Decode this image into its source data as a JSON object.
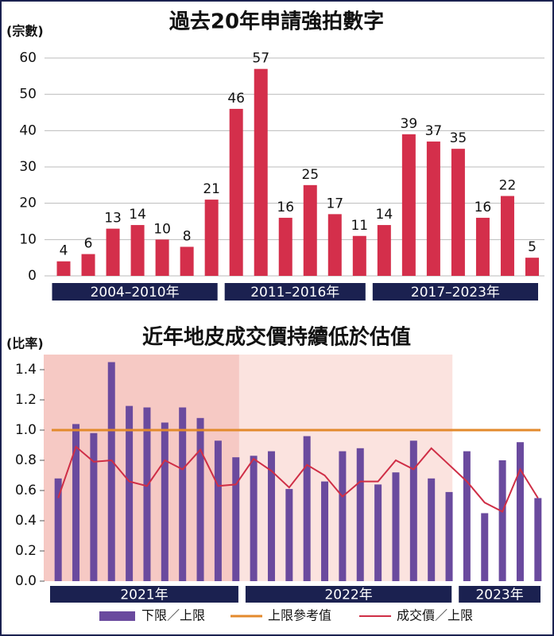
{
  "chart_data": [
    {
      "type": "bar",
      "title": "過去20年申請強拍數字",
      "y_label": "(宗數)",
      "categories": [
        null,
        null,
        null,
        null,
        null,
        null,
        null,
        null,
        null,
        null,
        null,
        null,
        null,
        null,
        null,
        null,
        null,
        null,
        null,
        null
      ],
      "values": [
        4,
        6,
        13,
        14,
        10,
        8,
        21,
        46,
        57,
        16,
        25,
        17,
        11,
        14,
        39,
        37,
        35,
        16,
        22,
        5
      ],
      "color": "#d42f4b",
      "ylim": [
        0,
        60
      ],
      "yticks": [
        0,
        10,
        20,
        30,
        40,
        50,
        60
      ],
      "grid": true,
      "groups": [
        {
          "label": "2004–2010年",
          "size": 7
        },
        {
          "label": "2011–2016年",
          "size": 6
        },
        {
          "label": "2017–2023年",
          "size": 7
        }
      ],
      "group_color": "#1b2150"
    },
    {
      "type": "bar_line",
      "title": "近年地皮成交價持續低於估值",
      "y_label": "(比率)",
      "categories": [
        null,
        null,
        null,
        null,
        null,
        null,
        null,
        null,
        null,
        null,
        null,
        null,
        null,
        null,
        null,
        null,
        null,
        null,
        null,
        null,
        null,
        null,
        null,
        null,
        null,
        null,
        null,
        null
      ],
      "series": [
        {
          "name": "下限／上限",
          "type": "bar",
          "color": "#6a4a9e",
          "values": [
            0.68,
            1.04,
            0.98,
            1.45,
            1.16,
            1.15,
            1.05,
            1.15,
            1.08,
            0.93,
            0.82,
            0.83,
            0.86,
            0.61,
            0.96,
            0.66,
            0.86,
            0.88,
            0.64,
            0.72,
            0.93,
            0.68,
            0.59,
            0.86,
            0.45,
            0.8,
            0.92,
            0.55
          ]
        },
        {
          "name": "成交價／上限",
          "type": "line",
          "color": "#cf2e46",
          "values": [
            0.55,
            0.89,
            0.79,
            0.8,
            0.66,
            0.63,
            0.8,
            0.74,
            0.87,
            0.63,
            0.64,
            0.81,
            0.73,
            0.62,
            0.77,
            0.7,
            0.56,
            0.66,
            0.66,
            0.8,
            0.74,
            0.88,
            0.77,
            0.66,
            0.52,
            0.46,
            0.74,
            0.55
          ]
        }
      ],
      "reference_line": {
        "name": "上限參考值",
        "value": 1.0,
        "color": "#e38a2c"
      },
      "ylim": [
        0,
        1.5
      ],
      "yticks": [
        {
          "value": 0,
          "label": "0.0"
        },
        0.2,
        0.4,
        0.6,
        0.8,
        {
          "value": 1,
          "label": "1.0"
        },
        1.2,
        1.4
      ],
      "grid": false,
      "groups": [
        {
          "label": "2021年",
          "size": 11,
          "shade": "#f6c9c4"
        },
        {
          "label": "2022年",
          "size": 12,
          "shade": "#fbe3df"
        },
        {
          "label": "2023年",
          "size": 5
        }
      ],
      "group_color": "#1b2150"
    }
  ]
}
